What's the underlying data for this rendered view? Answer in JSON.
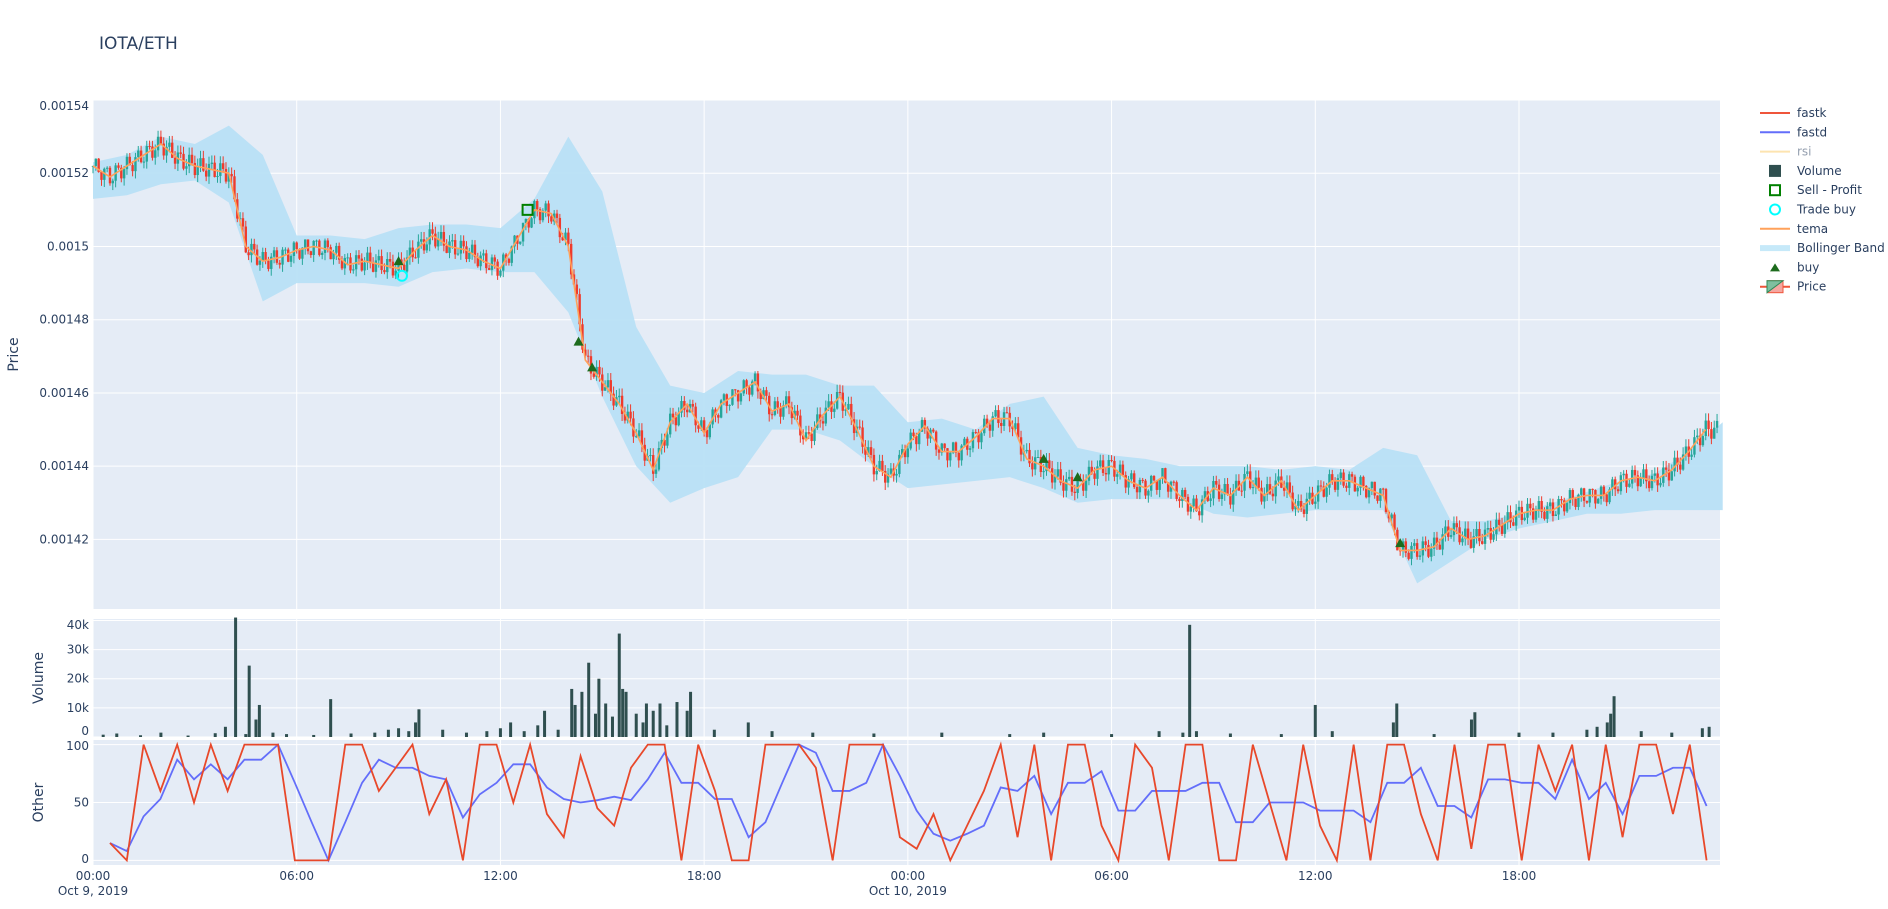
{
  "title": "IOTA/ETH",
  "chart_data": [
    {
      "type": "candlestick",
      "ylabel": "Price",
      "ylim": [
        0.001401,
        0.00154
      ],
      "yticks": [
        "0.00142",
        "0.00144",
        "0.00146",
        "0.00148",
        "0.0015",
        "0.00152",
        "0.00154"
      ],
      "ytick_values": [
        0.00142,
        0.00144,
        0.00146,
        0.00148,
        0.0015,
        0.00152,
        0.00154
      ],
      "x_start": "2019-10-09 00:00",
      "x_end": "2019-10-10 23:55",
      "grid": true,
      "close_every_30min": [
        0.001522,
        0.001519,
        0.001522,
        0.001525,
        0.001528,
        0.001524,
        0.001522,
        0.001521,
        0.00152,
        0.0015,
        0.001496,
        0.001497,
        0.001499,
        0.0015,
        0.001499,
        0.001495,
        0.001496,
        0.001495,
        0.001494,
        0.001499,
        0.001503,
        0.0015,
        0.001499,
        0.001496,
        0.001494,
        0.001502,
        0.00151,
        0.001509,
        0.0015,
        0.001469,
        0.001463,
        0.001457,
        0.001449,
        0.001439,
        0.001452,
        0.001457,
        0.001449,
        0.001457,
        0.00146,
        0.001463,
        0.001455,
        0.001457,
        0.001447,
        0.001454,
        0.001459,
        0.00145,
        0.00144,
        0.001437,
        0.001446,
        0.001451,
        0.001444,
        0.001444,
        0.001448,
        0.001453,
        0.001453,
        0.001442,
        0.00144,
        0.001436,
        0.001434,
        0.001439,
        0.00144,
        0.001436,
        0.001434,
        0.001437,
        0.001432,
        0.001428,
        0.001434,
        0.001432,
        0.001437,
        0.001432,
        0.001436,
        0.001428,
        0.001432,
        0.001436,
        0.001436,
        0.001434,
        0.001432,
        0.001417,
        0.001417,
        0.001418,
        0.001423,
        0.00142,
        0.001421,
        0.001424,
        0.001427,
        0.001428,
        0.001428,
        0.001431,
        0.001432,
        0.001432,
        0.001436,
        0.001437,
        0.001436,
        0.001439,
        0.001444,
        0.00145
      ],
      "bollinger_upper_hourly": [
        0.001523,
        0.001525,
        0.00153,
        0.001528,
        0.001533,
        0.001525,
        0.001503,
        0.001503,
        0.001502,
        0.001505,
        0.001506,
        0.001506,
        0.001505,
        0.001513,
        0.00153,
        0.001515,
        0.001478,
        0.001462,
        0.00146,
        0.001466,
        0.001465,
        0.001465,
        0.001462,
        0.001462,
        0.001452,
        0.001453,
        0.00145,
        0.001457,
        0.001459,
        0.001445,
        0.001443,
        0.001442,
        0.00144,
        0.00144,
        0.00144,
        0.001439,
        0.00144,
        0.001439,
        0.001445,
        0.001443,
        0.001425,
        0.001425,
        0.001427,
        0.00143,
        0.001433,
        0.001436,
        0.001438,
        0.001444,
        0.001452
      ],
      "bollinger_lower_hourly": [
        0.001513,
        0.001514,
        0.001517,
        0.001518,
        0.001512,
        0.001485,
        0.00149,
        0.00149,
        0.00149,
        0.001489,
        0.001493,
        0.001494,
        0.001493,
        0.001493,
        0.001482,
        0.001459,
        0.00144,
        0.00143,
        0.001434,
        0.001437,
        0.00145,
        0.00145,
        0.001447,
        0.00144,
        0.001434,
        0.001435,
        0.001436,
        0.001437,
        0.001434,
        0.00143,
        0.001431,
        0.001431,
        0.001431,
        0.001427,
        0.001426,
        0.001427,
        0.001428,
        0.001428,
        0.001428,
        0.001408,
        0.001414,
        0.00142,
        0.001423,
        0.001425,
        0.001427,
        0.001427,
        0.001428,
        0.001428,
        0.001428
      ],
      "buy_markers": [
        [
          9.0,
          0.001496
        ],
        [
          14.3,
          0.001474
        ],
        [
          14.7,
          0.001467
        ],
        [
          28.0,
          0.001442
        ],
        [
          29.0,
          0.001437
        ],
        [
          38.5,
          0.001419
        ]
      ],
      "trade_buy": [
        [
          9.1,
          0.001492
        ]
      ],
      "sell_profit": [
        [
          12.8,
          0.00151
        ]
      ]
    },
    {
      "type": "bar",
      "ylabel": "Volume",
      "ylim": [
        0,
        40500
      ],
      "yticks": [
        "0",
        "10k",
        "20k",
        "30k",
        "40k"
      ],
      "ytick_values": [
        0,
        10000,
        20000,
        30000,
        40000
      ],
      "bars_hour_value": [
        [
          0.3,
          800
        ],
        [
          0.7,
          1200
        ],
        [
          1.4,
          600
        ],
        [
          2.0,
          1500
        ],
        [
          2.8,
          500
        ],
        [
          3.6,
          1300
        ],
        [
          3.9,
          3500
        ],
        [
          4.2,
          41000
        ],
        [
          4.5,
          1000
        ],
        [
          4.6,
          24500
        ],
        [
          4.8,
          6000
        ],
        [
          4.9,
          11000
        ],
        [
          5.3,
          1500
        ],
        [
          5.7,
          1000
        ],
        [
          6.5,
          700
        ],
        [
          7.0,
          13000
        ],
        [
          7.6,
          1200
        ],
        [
          8.3,
          1500
        ],
        [
          8.7,
          2500
        ],
        [
          9.0,
          3000
        ],
        [
          9.3,
          2000
        ],
        [
          9.5,
          5000
        ],
        [
          9.6,
          9500
        ],
        [
          10.3,
          2500
        ],
        [
          11.0,
          1500
        ],
        [
          11.6,
          2000
        ],
        [
          12.0,
          3000
        ],
        [
          12.3,
          5000
        ],
        [
          12.7,
          2000
        ],
        [
          13.1,
          4000
        ],
        [
          13.3,
          9000
        ],
        [
          13.7,
          2500
        ],
        [
          14.1,
          16500
        ],
        [
          14.2,
          11000
        ],
        [
          14.4,
          15500
        ],
        [
          14.6,
          25500
        ],
        [
          14.8,
          8000
        ],
        [
          14.9,
          20000
        ],
        [
          15.1,
          11500
        ],
        [
          15.3,
          7000
        ],
        [
          15.5,
          35500
        ],
        [
          15.6,
          16500
        ],
        [
          15.7,
          15500
        ],
        [
          16.0,
          8000
        ],
        [
          16.2,
          5000
        ],
        [
          16.3,
          11500
        ],
        [
          16.5,
          9000
        ],
        [
          16.7,
          11500
        ],
        [
          16.9,
          4000
        ],
        [
          17.2,
          12000
        ],
        [
          17.5,
          9000
        ],
        [
          17.6,
          15500
        ],
        [
          18.3,
          2500
        ],
        [
          19.3,
          5000
        ],
        [
          20.0,
          2000
        ],
        [
          21.2,
          1500
        ],
        [
          23.0,
          1200
        ],
        [
          25.0,
          1500
        ],
        [
          27.0,
          1000
        ],
        [
          28.0,
          1500
        ],
        [
          30.0,
          1000
        ],
        [
          31.4,
          2000
        ],
        [
          32.1,
          1500
        ],
        [
          32.3,
          38500
        ],
        [
          32.5,
          2000
        ],
        [
          33.5,
          1200
        ],
        [
          35.0,
          1000
        ],
        [
          36.0,
          11000
        ],
        [
          36.5,
          2000
        ],
        [
          38.3,
          5000
        ],
        [
          38.4,
          11500
        ],
        [
          39.5,
          1000
        ],
        [
          40.6,
          6000
        ],
        [
          40.7,
          8500
        ],
        [
          42.0,
          1500
        ],
        [
          43.0,
          1500
        ],
        [
          44.0,
          2500
        ],
        [
          44.3,
          3500
        ],
        [
          44.6,
          5000
        ],
        [
          44.7,
          8000
        ],
        [
          44.8,
          14000
        ],
        [
          45.6,
          2000
        ],
        [
          46.5,
          1500
        ],
        [
          47.4,
          3000
        ],
        [
          47.6,
          3500
        ]
      ],
      "color": "#2f4f4f"
    },
    {
      "type": "line",
      "ylabel": "Other",
      "ylim": [
        -4,
        104
      ],
      "yticks": [
        "0",
        "50",
        "100"
      ],
      "ytick_values": [
        0,
        50,
        100
      ],
      "x_step_hours": 0.5,
      "series": [
        {
          "name": "fastk",
          "color": "#e8482a",
          "values": [
            15,
            0,
            100,
            60,
            100,
            50,
            100,
            60,
            100,
            100,
            100,
            0,
            0,
            0,
            100,
            100,
            60,
            80,
            100,
            40,
            70,
            0,
            100,
            100,
            50,
            100,
            40,
            20,
            90,
            45,
            30,
            80,
            100,
            100,
            0,
            100,
            60,
            0,
            0,
            100,
            100,
            100,
            80,
            0,
            100,
            100,
            100,
            20,
            10,
            40,
            0,
            30,
            60,
            100,
            20,
            100,
            0,
            100,
            100,
            30,
            0,
            100,
            80,
            0,
            100,
            100,
            0,
            0,
            100,
            50,
            0,
            100,
            30,
            0,
            100,
            0,
            100,
            100,
            40,
            0,
            100,
            10,
            100,
            100,
            0,
            100,
            60,
            100,
            0,
            100,
            20,
            100,
            100,
            40,
            100,
            0
          ]
        },
        {
          "name": "fastd",
          "color": "#636efa",
          "values": [
            15,
            8,
            38,
            53,
            87,
            70,
            83,
            70,
            87,
            87,
            100,
            67,
            33,
            0,
            33,
            67,
            87,
            80,
            80,
            73,
            70,
            37,
            57,
            67,
            83,
            83,
            63,
            53,
            50,
            52,
            55,
            52,
            70,
            93,
            67,
            67,
            53,
            53,
            20,
            33,
            67,
            100,
            93,
            60,
            60,
            67,
            100,
            73,
            43,
            23,
            17,
            23,
            30,
            63,
            60,
            73,
            40,
            67,
            67,
            77,
            43,
            43,
            60,
            60,
            60,
            67,
            67,
            33,
            33,
            50,
            50,
            50,
            43,
            43,
            43,
            33,
            67,
            67,
            80,
            47,
            47,
            37,
            70,
            70,
            67,
            67,
            53,
            87,
            53,
            67,
            40,
            73,
            73,
            80,
            80,
            47
          ]
        }
      ]
    }
  ],
  "x_ticks": [
    {
      "time": "00:00",
      "date": "Oct 9, 2019",
      "hour": 0
    },
    {
      "time": "06:00",
      "date": "",
      "hour": 6
    },
    {
      "time": "12:00",
      "date": "",
      "hour": 12
    },
    {
      "time": "18:00",
      "date": "",
      "hour": 18
    },
    {
      "time": "00:00",
      "date": "Oct 10, 2019",
      "hour": 24
    },
    {
      "time": "06:00",
      "date": "",
      "hour": 30
    },
    {
      "time": "12:00",
      "date": "",
      "hour": 36
    },
    {
      "time": "18:00",
      "date": "",
      "hour": 42
    }
  ],
  "legend": [
    {
      "label": "fastk",
      "symbol": "line",
      "color": "#ef553b"
    },
    {
      "label": "fastd",
      "symbol": "line",
      "color": "#636efa"
    },
    {
      "label": "rsi",
      "symbol": "line",
      "color": "#fde4b0",
      "hidden": true
    },
    {
      "label": "Volume",
      "symbol": "square",
      "color": "#2f4f4f"
    },
    {
      "label": "Sell - Profit",
      "symbol": "square-open",
      "color": "#008000"
    },
    {
      "label": "Trade buy",
      "symbol": "circle-open",
      "color": "#00ffff"
    },
    {
      "label": "tema",
      "symbol": "line",
      "color": "#ffa15a"
    },
    {
      "label": "Bollinger Band",
      "symbol": "band",
      "color": "#c6e9f9"
    },
    {
      "label": "buy",
      "symbol": "triangle",
      "color": "#1d6b1d"
    },
    {
      "label": "Price",
      "symbol": "candle",
      "color": "#26a69a"
    }
  ],
  "colors": {
    "plot_bg": "#e5ecf6",
    "up": "#26a69a",
    "down": "#ef3b2c",
    "band": "#b8e0f5",
    "tema": "#ffa15a"
  }
}
